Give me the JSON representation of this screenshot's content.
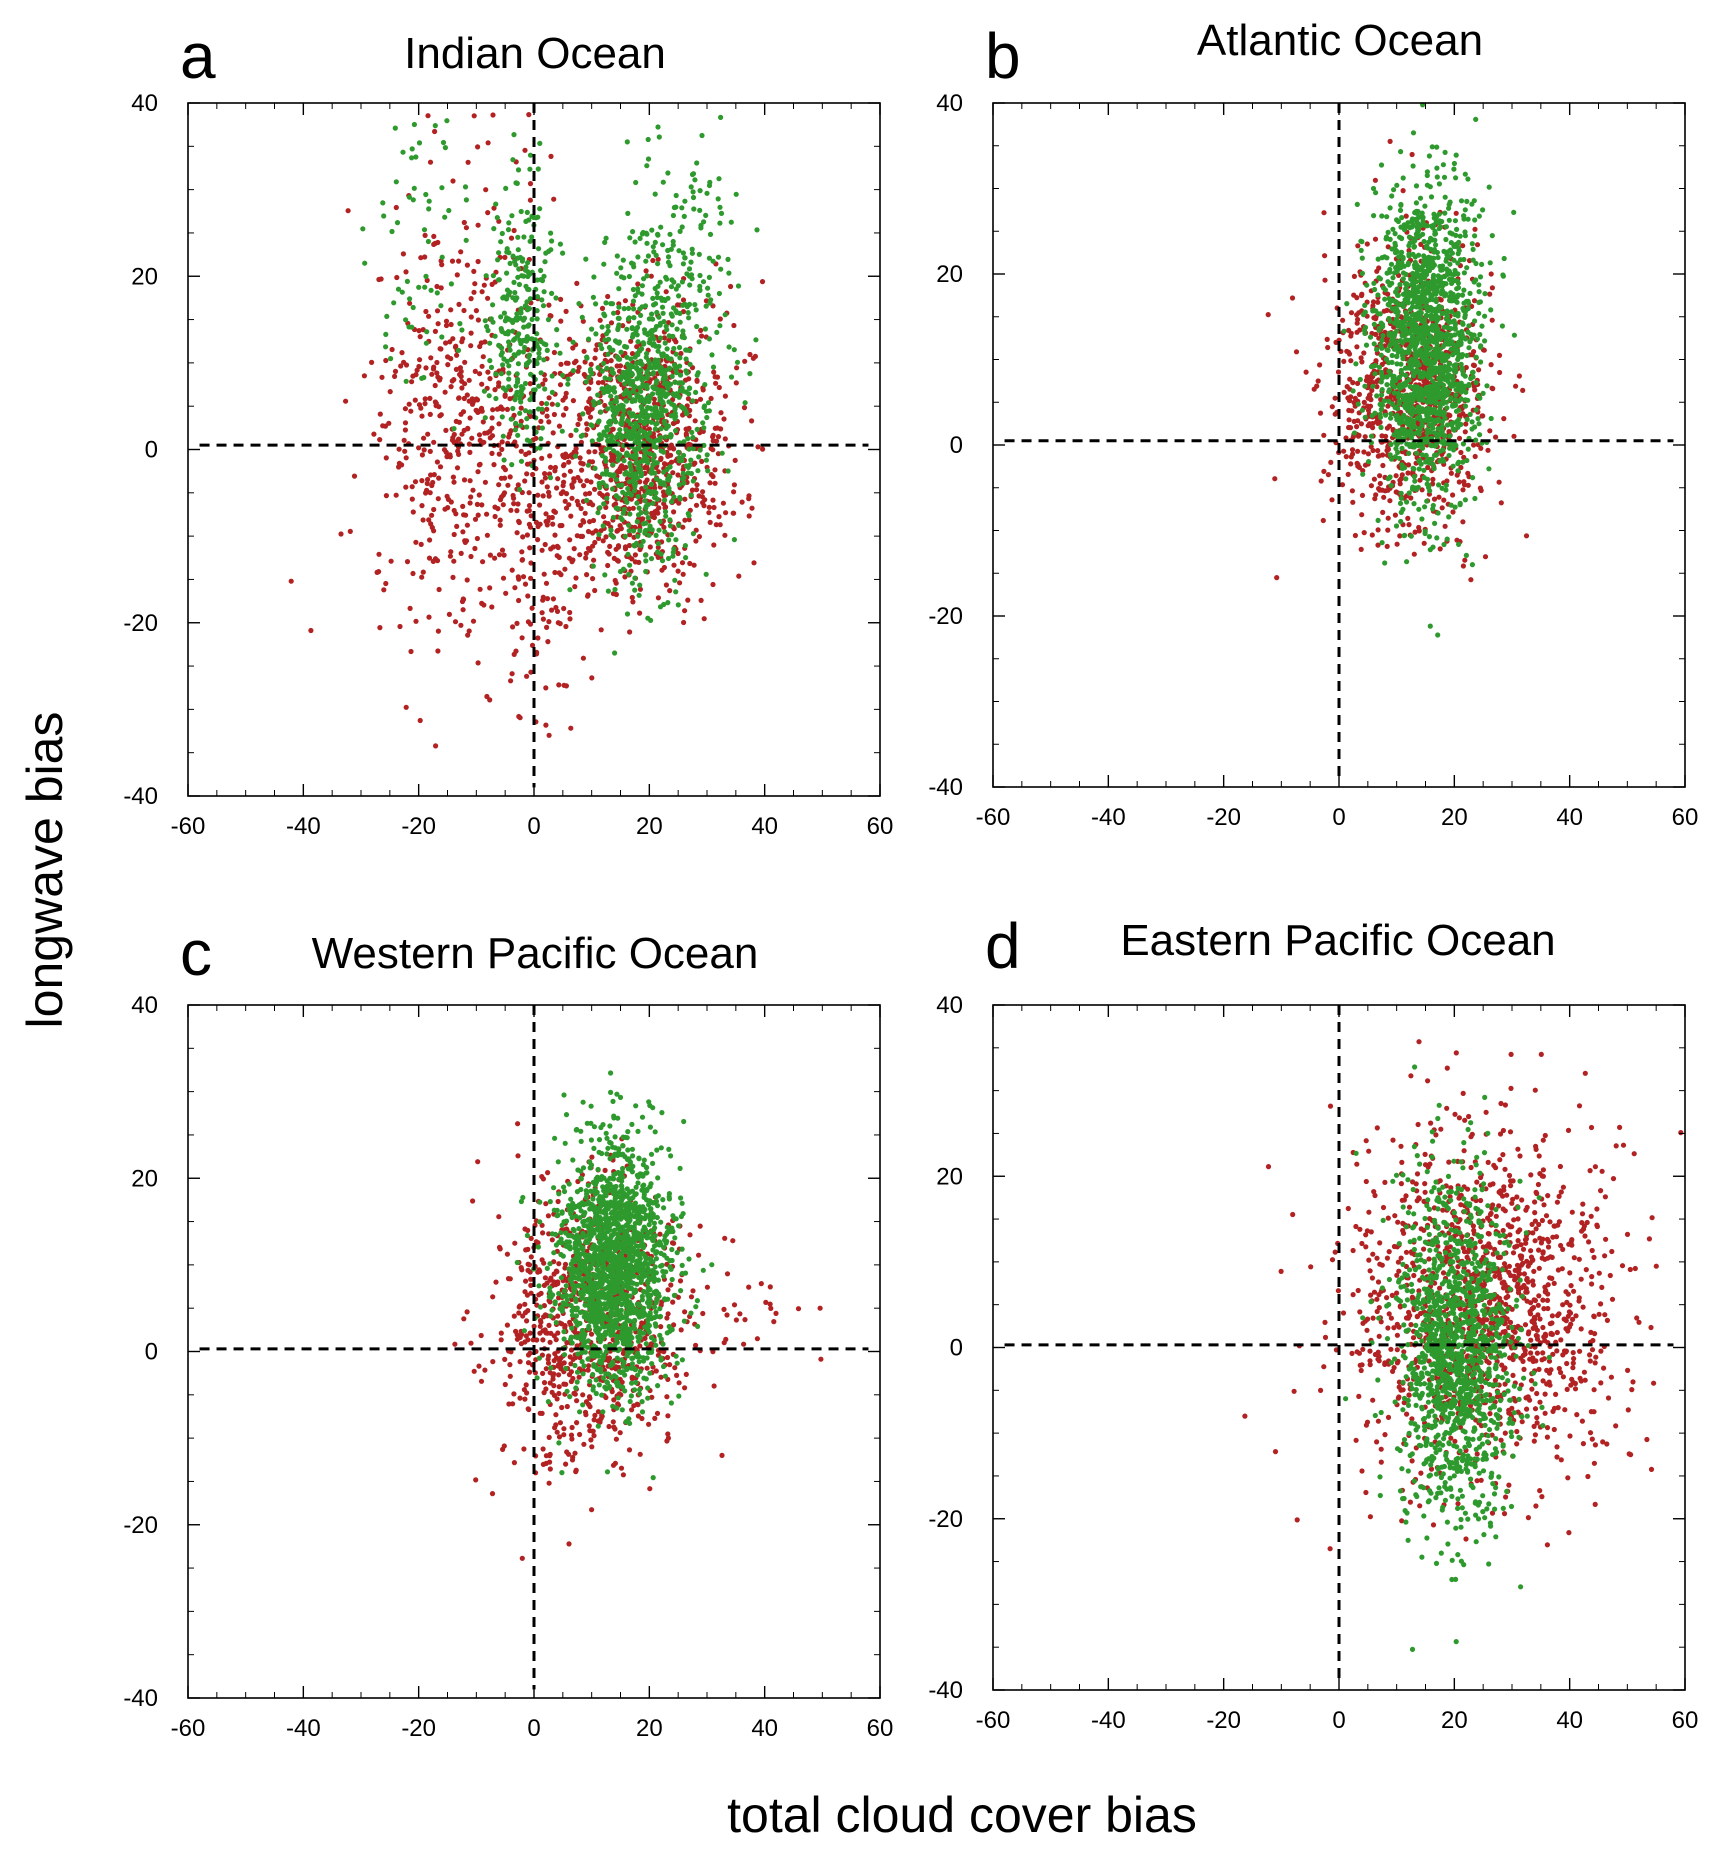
{
  "figure": {
    "xlabel": "total cloud cover bias",
    "ylabel": "longwave bias"
  },
  "colors": {
    "series_red": "#b22222",
    "series_green": "#2e9a2e",
    "axis": "#000000",
    "reference_line": "#000000"
  },
  "chart_data": [
    {
      "type": "scatter",
      "panel_letter": "a",
      "title": "Indian Ocean",
      "xlabel": "total cloud cover bias",
      "ylabel": "longwave bias",
      "xlim": [
        -60,
        60
      ],
      "ylim": [
        -40,
        40
      ],
      "xticks": [
        -60,
        -40,
        -20,
        0,
        20,
        40,
        60
      ],
      "yticks": [
        -40,
        -20,
        0,
        20,
        40
      ],
      "reference_lines": {
        "x": 0,
        "y": 0.5
      },
      "series": [
        {
          "name": "red",
          "color": "#b22222",
          "clusters": [
            {
              "cx": 18,
              "cy": 0,
              "sx": 8,
              "sy": 8,
              "n": 900
            },
            {
              "cx": -12,
              "cy": 2,
              "sx": 8,
              "sy": 14,
              "n": 520
            },
            {
              "cx": 2,
              "cy": -10,
              "sx": 4,
              "sy": 10,
              "n": 120
            }
          ]
        },
        {
          "name": "green",
          "color": "#2e9a2e",
          "clusters": [
            {
              "cx": 19,
              "cy": 4,
              "sx": 5,
              "sy": 9,
              "n": 850
            },
            {
              "cx": -2,
              "cy": 14,
              "sx": 3,
              "sy": 8,
              "n": 280
            },
            {
              "cx": 26,
              "cy": 22,
              "sx": 5,
              "sy": 8,
              "n": 140
            },
            {
              "cx": -20,
              "cy": 22,
              "sx": 4,
              "sy": 12,
              "n": 70
            }
          ]
        }
      ]
    },
    {
      "type": "scatter",
      "panel_letter": "b",
      "title": "Atlantic Ocean",
      "xlabel": "total cloud cover bias",
      "ylabel": "longwave bias",
      "xlim": [
        -60,
        60
      ],
      "ylim": [
        -40,
        40
      ],
      "xticks": [
        -60,
        -40,
        -20,
        0,
        20,
        40,
        60
      ],
      "yticks": [
        -40,
        -20,
        0,
        20,
        40
      ],
      "reference_lines": {
        "x": 0,
        "y": 0.5
      },
      "series": [
        {
          "name": "red",
          "color": "#b22222",
          "clusters": [
            {
              "cx": 12,
              "cy": 6,
              "sx": 7,
              "sy": 8,
              "n": 900
            }
          ]
        },
        {
          "name": "green",
          "color": "#2e9a2e",
          "clusters": [
            {
              "cx": 15,
              "cy": 12,
              "sx": 4.5,
              "sy": 9,
              "n": 1500
            }
          ]
        }
      ]
    },
    {
      "type": "scatter",
      "panel_letter": "c",
      "title": "Western Pacific Ocean",
      "xlabel": "total cloud cover bias",
      "ylabel": "longwave bias",
      "xlim": [
        -60,
        60
      ],
      "ylim": [
        -40,
        40
      ],
      "xticks": [
        -60,
        -40,
        -20,
        0,
        20,
        40,
        60
      ],
      "yticks": [
        -40,
        -20,
        0,
        20,
        40
      ],
      "reference_lines": {
        "x": 0,
        "y": 0.3
      },
      "series": [
        {
          "name": "red",
          "color": "#b22222",
          "clusters": [
            {
              "cx": 10,
              "cy": 4,
              "sx": 8,
              "sy": 8,
              "n": 850
            },
            {
              "cx": 40,
              "cy": 5,
              "sx": 5,
              "sy": 3,
              "n": 20
            }
          ]
        },
        {
          "name": "green",
          "color": "#2e9a2e",
          "clusters": [
            {
              "cx": 14,
              "cy": 10,
              "sx": 5,
              "sy": 7,
              "n": 1700
            }
          ]
        }
      ]
    },
    {
      "type": "scatter",
      "panel_letter": "d",
      "title": "Eastern Pacific Ocean",
      "xlabel": "total cloud cover bias",
      "ylabel": "longwave bias",
      "xlim": [
        -60,
        60
      ],
      "ylim": [
        -40,
        40
      ],
      "xticks": [
        -60,
        -40,
        -20,
        0,
        20,
        40,
        60
      ],
      "yticks": [
        -40,
        -20,
        0,
        20,
        40
      ],
      "reference_lines": {
        "x": 0,
        "y": 0.3
      },
      "series": [
        {
          "name": "red",
          "color": "#b22222",
          "clusters": [
            {
              "cx": 25,
              "cy": 5,
              "sx": 12,
              "sy": 10,
              "n": 1300
            }
          ]
        },
        {
          "name": "green",
          "color": "#2e9a2e",
          "clusters": [
            {
              "cx": 20,
              "cy": 0,
              "sx": 5,
              "sy": 10,
              "n": 1300
            }
          ]
        }
      ]
    }
  ]
}
